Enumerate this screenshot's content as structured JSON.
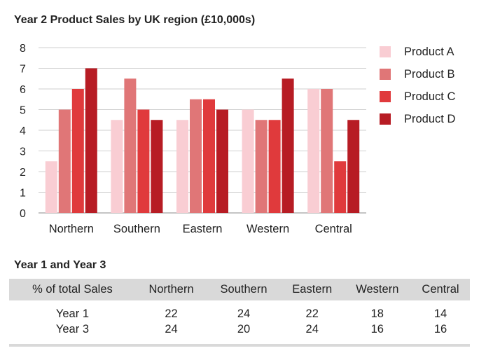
{
  "chart_data": {
    "type": "bar",
    "title": "Year 2 Product Sales by UK region (£10,000s)",
    "categories": [
      "Northern",
      "Southern",
      "Eastern",
      "Western",
      "Central"
    ],
    "series": [
      {
        "name": "Product A",
        "color": "#f9cdd3",
        "values": [
          2.5,
          4.5,
          4.5,
          5,
          6
        ]
      },
      {
        "name": "Product B",
        "color": "#e07677",
        "values": [
          5,
          6.5,
          5.5,
          4.5,
          6
        ]
      },
      {
        "name": "Product C",
        "color": "#e03a3c",
        "values": [
          6,
          5,
          5.5,
          4.5,
          2.5
        ]
      },
      {
        "name": "Product D",
        "color": "#b71c24",
        "values": [
          7,
          4.5,
          5,
          6.5,
          4.5
        ]
      }
    ],
    "ylim": [
      0,
      8
    ],
    "yticks": [
      0,
      1,
      2,
      3,
      4,
      5,
      6,
      7,
      8
    ],
    "grid": true,
    "legend": "right"
  },
  "table": {
    "title": "Year 1 and Year 3",
    "headers": [
      "% of total Sales",
      "Northern",
      "Southern",
      "Eastern",
      "Western",
      "Central"
    ],
    "rows": [
      [
        "Year 1",
        "22",
        "24",
        "22",
        "18",
        "14"
      ],
      [
        "Year 3",
        "24",
        "20",
        "24",
        "16",
        "16"
      ]
    ]
  }
}
